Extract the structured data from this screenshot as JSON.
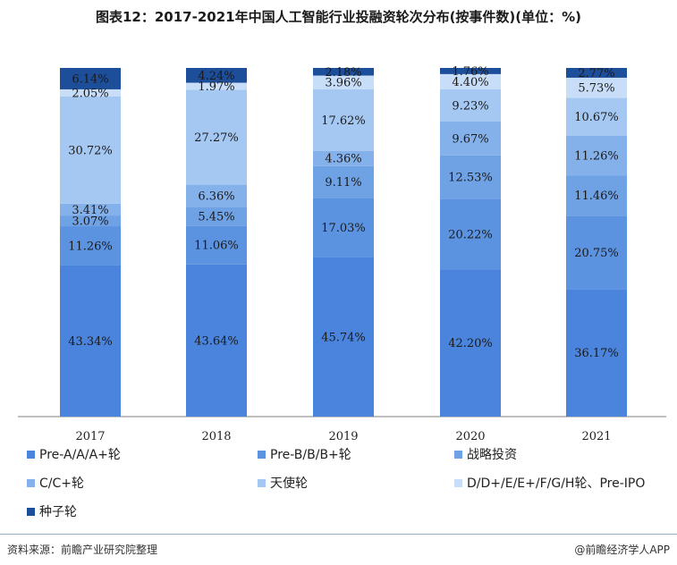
{
  "title": "图表12：2017-2021年中国人工智能行业投融资轮次分布(按事件数)(单位：%)",
  "source": "资料来源：前瞻产业研究院整理",
  "brand": "@前瞻经济学人APP",
  "chart_data": {
    "type": "bar",
    "stacked": true,
    "categories": [
      "2017",
      "2018",
      "2019",
      "2020",
      "2021"
    ],
    "ylim": [
      0,
      100
    ],
    "grid": false,
    "legend_position": "bottom",
    "series": [
      {
        "name": "Pre-A/A/A+轮",
        "color": "#4a84dc",
        "values": [
          43.34,
          43.64,
          45.74,
          42.2,
          36.17
        ]
      },
      {
        "name": "Pre-B/B/B+轮",
        "color": "#5b93e0",
        "values": [
          11.26,
          11.06,
          17.03,
          20.22,
          20.75
        ]
      },
      {
        "name": "战略投资",
        "color": "#6fa1e5",
        "values": [
          3.07,
          5.45,
          9.11,
          12.53,
          11.46
        ]
      },
      {
        "name": "C/C+轮",
        "color": "#85b1ea",
        "values": [
          3.41,
          6.36,
          4.36,
          9.67,
          11.26
        ]
      },
      {
        "name": "天使轮",
        "color": "#a5c8f3",
        "values": [
          30.72,
          27.27,
          17.62,
          9.23,
          10.67
        ]
      },
      {
        "name": "D/D+/E/E+/F/G/H轮、Pre-IPO",
        "color": "#c8ddf8",
        "values": [
          2.05,
          1.97,
          3.96,
          4.4,
          5.73
        ]
      },
      {
        "name": "种子轮",
        "color": "#1d4e9a",
        "values": [
          6.14,
          4.24,
          2.18,
          1.76,
          2.77
        ]
      }
    ]
  }
}
